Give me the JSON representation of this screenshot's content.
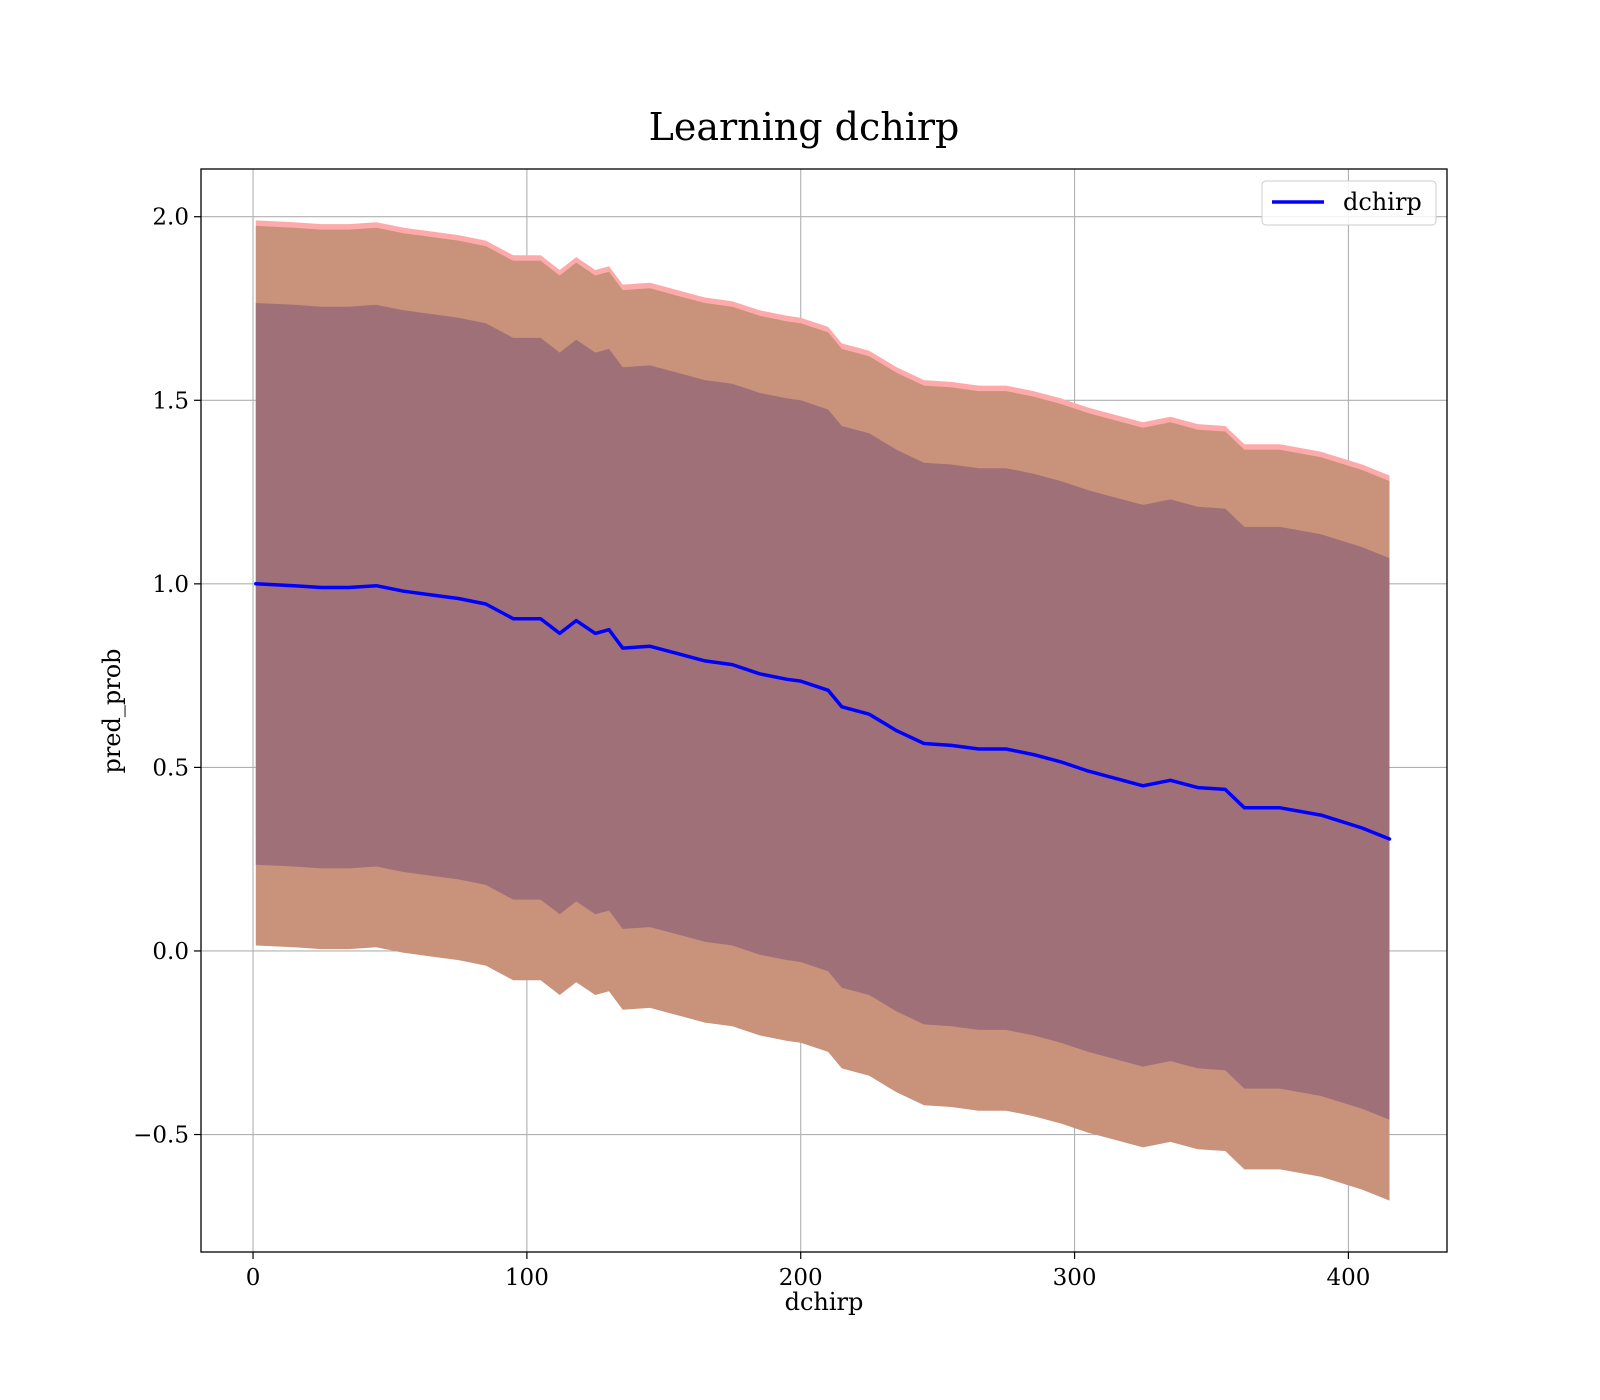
{
  "chart_data": {
    "type": "line",
    "title": "Learning dchirp",
    "xlabel": "dchirp",
    "ylabel": "pred_prob",
    "xlim": [
      -19,
      436
    ],
    "ylim": [
      -0.82,
      2.13
    ],
    "xticks": [
      0,
      100,
      200,
      300,
      400
    ],
    "xtick_labels": [
      "0",
      "100",
      "200",
      "300",
      "400"
    ],
    "yticks": [
      -0.5,
      0.0,
      0.5,
      1.0,
      1.5,
      2.0
    ],
    "ytick_labels": [
      "−0.5",
      "0.0",
      "0.5",
      "1.0",
      "1.5",
      "2.0"
    ],
    "grid": true,
    "legend_position": "upper-right",
    "colors": {
      "line": "#0000ff",
      "outer_band": "#ffaaaa",
      "middle_band": "#c8937a",
      "inner_band": "#a07078",
      "grid": "#b0b0b0"
    },
    "series": [
      {
        "name": "dchirp",
        "x": [
          1,
          15,
          25,
          35,
          45,
          55,
          65,
          75,
          85,
          95,
          105,
          112,
          118,
          125,
          130,
          135,
          145,
          155,
          165,
          175,
          185,
          195,
          200,
          210,
          215,
          225,
          235,
          245,
          255,
          265,
          275,
          285,
          295,
          305,
          315,
          325,
          335,
          345,
          355,
          362,
          375,
          390,
          405,
          415
        ],
        "y": [
          1.0,
          0.995,
          0.99,
          0.99,
          0.995,
          0.98,
          0.97,
          0.96,
          0.945,
          0.905,
          0.905,
          0.865,
          0.9,
          0.865,
          0.875,
          0.825,
          0.83,
          0.81,
          0.79,
          0.78,
          0.755,
          0.74,
          0.735,
          0.71,
          0.665,
          0.645,
          0.6,
          0.565,
          0.56,
          0.55,
          0.55,
          0.535,
          0.515,
          0.49,
          0.47,
          0.45,
          0.465,
          0.445,
          0.44,
          0.39,
          0.39,
          0.37,
          0.335,
          0.305
        ]
      }
    ],
    "bands": [
      {
        "lower_offset": -0.69,
        "upper_offset": 0.99,
        "color_key": "outer_band"
      },
      {
        "lower_offset": -0.985,
        "upper_offset": 0.975,
        "color_key": "middle_band"
      },
      {
        "lower_offset": -0.765,
        "upper_offset": 0.765,
        "color_key": "inner_band"
      }
    ]
  }
}
